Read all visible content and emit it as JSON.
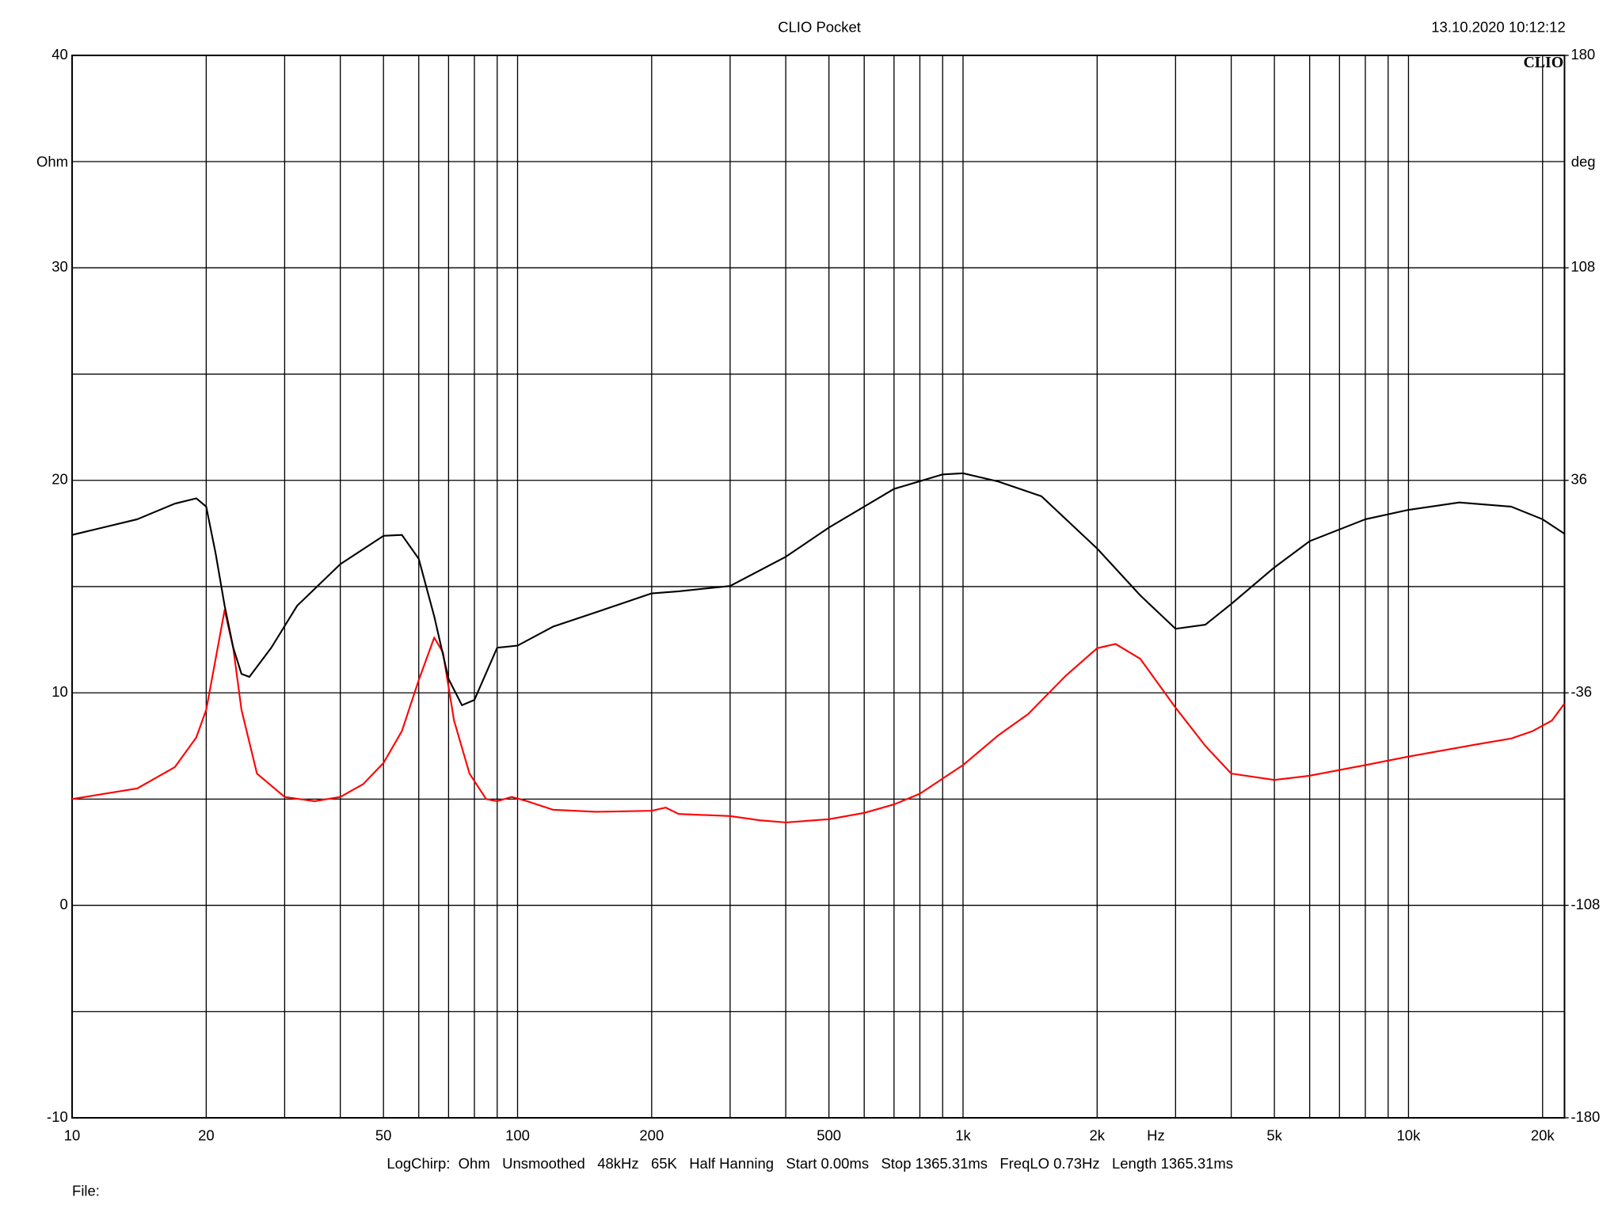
{
  "chart_data": {
    "type": "line",
    "title": "CLIO Pocket",
    "timestamp": "13.10.2020 10:12:12",
    "logo": "CLIO",
    "y_label": "Ohm",
    "y2_label": "deg",
    "x_label": "Hz",
    "info": "LogChirp:  Ohm   Unsmoothed   48kHz   65K   Half Hanning   Start 0.00ms   Stop 1365.31ms   FreqLO 0.73Hz   Length 1365.31ms",
    "file_label": "File:",
    "x_log": true,
    "grid": true,
    "xlim": [
      10,
      22400
    ],
    "xticks": [
      10,
      20,
      50,
      100,
      200,
      500,
      {
        "value": 1000,
        "label": "1k"
      },
      {
        "value": 2000,
        "label": "2k"
      },
      {
        "value": 5000,
        "label": "5k"
      },
      {
        "value": 10000,
        "label": "10k"
      },
      {
        "value": 20000,
        "label": "20k"
      }
    ],
    "x_minor_ticks": [
      30,
      40,
      60,
      70,
      80,
      90,
      300,
      400,
      600,
      700,
      800,
      900,
      3000,
      4000,
      6000,
      7000,
      8000,
      9000
    ],
    "ylim": [
      -10,
      40
    ],
    "yticks": [
      -10,
      0,
      10,
      20,
      30,
      40
    ],
    "y_minor_ticks": [
      -5,
      5,
      15,
      25,
      35
    ],
    "y2lim": [
      -180,
      180
    ],
    "y2ticks": [
      -180,
      -108,
      -36,
      36,
      108,
      180
    ],
    "series": [
      {
        "color": "#ff0000",
        "x": [
          10,
          14,
          17,
          19,
          20,
          21,
          22,
          23,
          24,
          26,
          30,
          35,
          40,
          45,
          50,
          55,
          60,
          65,
          68,
          72,
          78,
          85,
          90,
          97,
          105,
          120,
          150,
          200,
          215,
          230,
          300,
          350,
          400,
          500,
          600,
          700,
          800,
          1000,
          1200,
          1400,
          1700,
          2000,
          2200,
          2500,
          3000,
          3500,
          4000,
          5000,
          6000,
          8000,
          10000,
          14000,
          17000,
          19000,
          21000,
          22400
        ],
        "values": [
          5.0,
          5.5,
          6.5,
          7.9,
          9.2,
          11.6,
          13.9,
          12.1,
          9.2,
          6.2,
          5.1,
          4.9,
          5.1,
          5.7,
          6.7,
          8.2,
          10.6,
          12.6,
          11.9,
          8.7,
          6.2,
          5.0,
          4.9,
          5.1,
          4.9,
          4.5,
          4.4,
          4.45,
          4.6,
          4.3,
          4.2,
          4.0,
          3.9,
          4.05,
          4.35,
          4.75,
          5.25,
          6.6,
          8.0,
          9.0,
          10.8,
          12.1,
          12.3,
          11.6,
          9.3,
          7.5,
          6.2,
          5.9,
          6.1,
          6.6,
          7.0,
          7.55,
          7.85,
          8.2,
          8.7,
          9.5
        ]
      },
      {
        "color": "#000000",
        "axis": "y2",
        "x": [
          10,
          14,
          17,
          19,
          20,
          21,
          22,
          23,
          24,
          25,
          28,
          32,
          40,
          50,
          55,
          60,
          65,
          70,
          75,
          80,
          90,
          100,
          120,
          150,
          200,
          230,
          300,
          400,
          500,
          700,
          900,
          1000,
          1200,
          1500,
          2000,
          2500,
          3000,
          3500,
          4000,
          5000,
          6000,
          8000,
          10000,
          13000,
          17000,
          20000,
          22400
        ],
        "values": [
          17.5,
          22.8,
          28.1,
          29.9,
          27.1,
          11.2,
          -6.5,
          -20.7,
          -29.6,
          -30.6,
          -20.7,
          -6.5,
          7.6,
          17.2,
          17.5,
          9.4,
          -10.1,
          -31.3,
          -40.2,
          -38.4,
          -20.7,
          -20.0,
          -13.6,
          -8.7,
          -2.3,
          -1.6,
          0.2,
          10.1,
          20.0,
          33.1,
          38.0,
          38.4,
          35.6,
          30.6,
          12.9,
          -3.0,
          -14.3,
          -12.9,
          -5.9,
          6.5,
          15.4,
          22.8,
          26.0,
          28.5,
          27.1,
          22.8,
          17.9
        ]
      }
    ]
  }
}
